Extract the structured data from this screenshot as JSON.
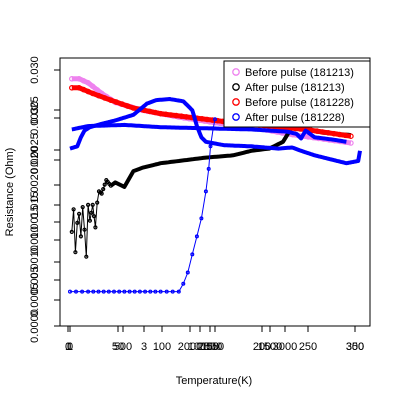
{
  "chart_data": {
    "type": "scatter",
    "xlabel": "Temperature(K)",
    "ylabel": "Resistance (Ohm)",
    "grid": false,
    "legend_position": "top-right",
    "legend": [
      {
        "label": "Before pulse (181213)",
        "color": "#ee82ee"
      },
      {
        "label": "After pulse (181213)",
        "color": "#000000"
      },
      {
        "label": "Before pulse (181228)",
        "color": "#ff0000"
      },
      {
        "label": "After pulse (181228)",
        "color": "#0000ff"
      }
    ],
    "x_tick_labels_overprinted": [
      "0",
      "0",
      "50",
      "100",
      "150",
      "200",
      "250",
      "300",
      "500",
      "1000",
      "1500",
      "2000",
      "2500",
      "3000",
      "3",
      "350",
      "150",
      "1",
      "1"
    ],
    "y_tick_labels_overprinted": [
      "0.0000",
      "0.0005",
      "0.0010",
      "0.0015",
      "0.0020",
      "0.0025",
      "0.0030",
      "0.005",
      "0.010",
      "0.015",
      "0.020",
      "0.025",
      "0.030"
    ],
    "series": [
      {
        "name": "Before pulse (181213)",
        "color": "#ee82ee",
        "points": [
          [
            2,
            10.0
          ],
          [
            10,
            10.0
          ],
          [
            20,
            9.82
          ],
          [
            35,
            9.35
          ],
          [
            50,
            8.95
          ],
          [
            80,
            8.6
          ],
          [
            120,
            8.3
          ],
          [
            160,
            8.05
          ],
          [
            200,
            7.85
          ],
          [
            240,
            7.55
          ],
          [
            280,
            7.32
          ],
          [
            310,
            7.15
          ]
        ]
      },
      {
        "name": "After pulse (181213)",
        "color": "#000000",
        "points": [
          [
            2,
            3.2
          ],
          [
            4,
            4.2
          ],
          [
            6,
            2.3
          ],
          [
            8,
            3.6
          ],
          [
            10,
            4.0
          ],
          [
            12,
            3.0
          ],
          [
            14,
            4.3
          ],
          [
            16,
            3.3
          ],
          [
            18,
            2.1
          ],
          [
            20,
            4.4
          ],
          [
            22,
            3.7
          ],
          [
            25,
            4.4
          ],
          [
            28,
            3.4
          ],
          [
            30,
            4.5
          ],
          [
            32,
            5.0
          ],
          [
            35,
            4.9
          ],
          [
            40,
            5.5
          ],
          [
            45,
            5.25
          ],
          [
            50,
            5.4
          ],
          [
            60,
            5.2
          ],
          [
            70,
            5.9
          ],
          [
            80,
            6.05
          ],
          [
            100,
            6.25
          ],
          [
            120,
            6.35
          ],
          [
            150,
            6.5
          ],
          [
            180,
            6.6
          ],
          [
            200,
            6.8
          ],
          [
            220,
            6.9
          ],
          [
            235,
            7.2
          ],
          [
            245,
            7.85
          ],
          [
            250,
            7.95
          ],
          [
            260,
            7.75
          ],
          [
            280,
            7.6
          ],
          [
            310,
            7.5
          ]
        ]
      },
      {
        "name": "Before pulse (181228)",
        "color": "#ff0000",
        "points": [
          [
            2,
            9.6
          ],
          [
            10,
            9.6
          ],
          [
            25,
            9.35
          ],
          [
            45,
            9.05
          ],
          [
            70,
            8.7
          ],
          [
            100,
            8.45
          ],
          [
            140,
            8.25
          ],
          [
            180,
            8.05
          ],
          [
            220,
            7.9
          ],
          [
            260,
            7.75
          ],
          [
            310,
            7.45
          ]
        ]
      },
      {
        "name": "After pulse (181228)",
        "color": "#0000ff",
        "loops": [
          [
            [
              0,
              6.9
            ],
            [
              8,
              7.0
            ],
            [
              12,
              7.4
            ],
            [
              16,
              7.7
            ],
            [
              22,
              7.85
            ],
            [
              35,
              8.0
            ],
            [
              50,
              8.15
            ],
            [
              70,
              8.4
            ],
            [
              85,
              8.9
            ],
            [
              95,
              9.05
            ],
            [
              110,
              9.1
            ],
            [
              125,
              9.0
            ],
            [
              135,
              8.6
            ],
            [
              140,
              7.9
            ],
            [
              145,
              7.4
            ],
            [
              150,
              7.2
            ],
            [
              170,
              7.05
            ],
            [
              200,
              7.0
            ],
            [
              230,
              6.9
            ],
            [
              245,
              6.95
            ],
            [
              255,
              6.8
            ],
            [
              270,
              6.6
            ],
            [
              290,
              6.4
            ],
            [
              305,
              6.25
            ],
            [
              318,
              6.35
            ],
            [
              320,
              6.8
            ]
          ],
          [
            [
              2,
              7.75
            ],
            [
              20,
              7.9
            ],
            [
              60,
              7.95
            ],
            [
              100,
              7.85
            ],
            [
              150,
              7.8
            ],
            [
              200,
              7.75
            ],
            [
              240,
              7.65
            ],
            [
              250,
              7.55
            ],
            [
              255,
              7.35
            ],
            [
              260,
              7.7
            ],
            [
              270,
              7.4
            ],
            [
              290,
              7.3
            ],
            [
              305,
              7.2
            ]
          ]
        ],
        "transition_points": [
          [
            0,
            0.55
          ],
          [
            20,
            0.55
          ],
          [
            60,
            0.55
          ],
          [
            100,
            0.55
          ],
          [
            120,
            0.55
          ],
          [
            125,
            0.9
          ],
          [
            130,
            1.4
          ],
          [
            135,
            2.2
          ],
          [
            140,
            3.0
          ],
          [
            145,
            3.8
          ],
          [
            150,
            5.0
          ],
          [
            153,
            6.0
          ],
          [
            155,
            7.0
          ],
          [
            158,
            7.8
          ],
          [
            160,
            8.2
          ]
        ]
      }
    ]
  }
}
